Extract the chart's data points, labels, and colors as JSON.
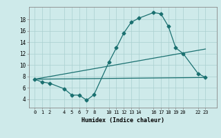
{
  "xlabel": "Humidex (Indice chaleur)",
  "background_color": "#ceeaea",
  "grid_color": "#aacfcf",
  "line_color": "#1a7070",
  "xticks": [
    0,
    1,
    2,
    4,
    5,
    6,
    7,
    8,
    10,
    11,
    12,
    13,
    14,
    16,
    17,
    18,
    19,
    20,
    22,
    23
  ],
  "yticks": [
    4,
    6,
    8,
    10,
    12,
    14,
    16,
    18
  ],
  "ylim": [
    2.5,
    20.2
  ],
  "xlim": [
    -0.8,
    24.5
  ],
  "line1_x": [
    0,
    1,
    2,
    4,
    5,
    6,
    7,
    8,
    10,
    11,
    12,
    13,
    14,
    16,
    17,
    18,
    19,
    20,
    22,
    23
  ],
  "line1_y": [
    7.5,
    7.0,
    6.8,
    5.8,
    4.7,
    4.7,
    3.8,
    4.8,
    10.5,
    13.0,
    15.6,
    17.5,
    18.2,
    19.2,
    19.0,
    16.8,
    13.0,
    12.0,
    8.5,
    7.8
  ],
  "line2_x": [
    0,
    23
  ],
  "line2_y": [
    7.5,
    12.8
  ],
  "line3_x": [
    0,
    23
  ],
  "line3_y": [
    7.5,
    7.8
  ]
}
